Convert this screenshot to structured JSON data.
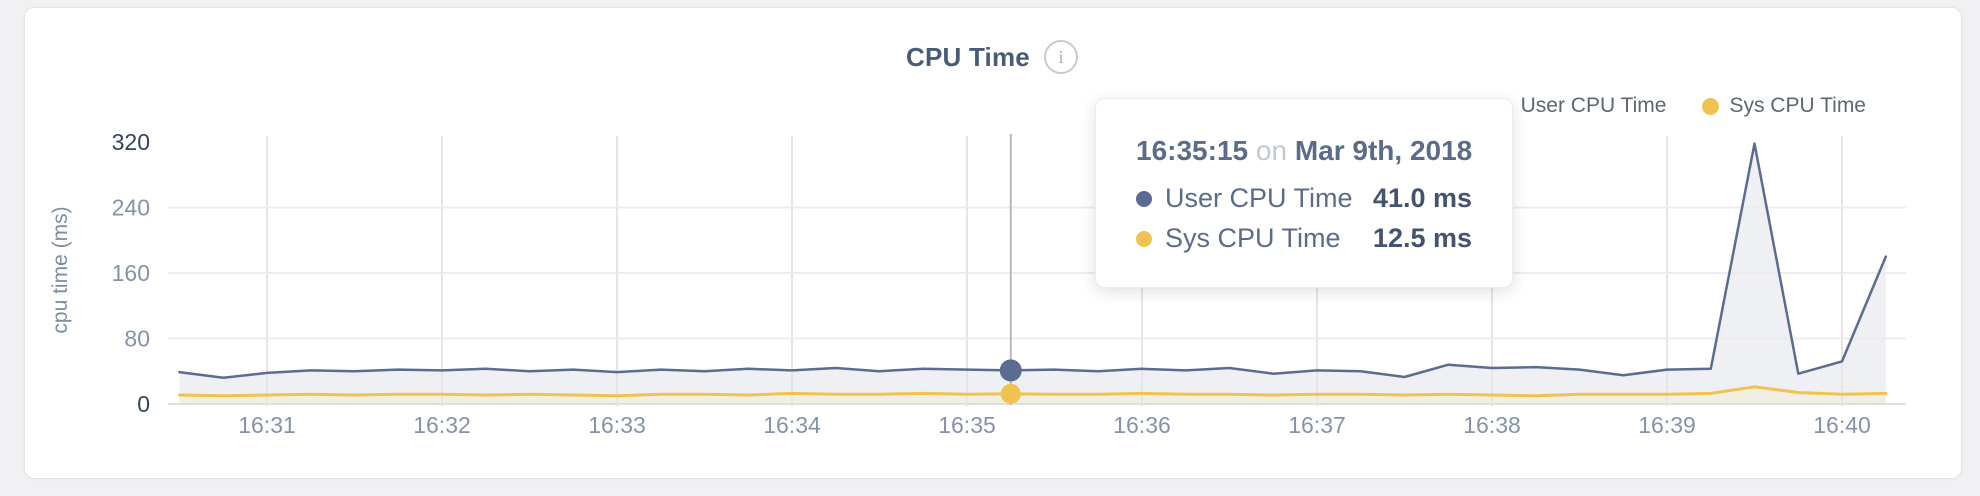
{
  "header": {
    "title": "CPU Time",
    "info_icon": "i"
  },
  "legend": {
    "items": [
      {
        "label": "User CPU Time",
        "color": "#5a6c8f"
      },
      {
        "label": "Sys CPU Time",
        "color": "#f0c24f"
      }
    ]
  },
  "tooltip": {
    "time": "16:35:15",
    "conjunction": "on",
    "date": "Mar 9th, 2018",
    "rows": [
      {
        "label": "User CPU Time",
        "value": "41.0 ms",
        "color": "#5a6c8f"
      },
      {
        "label": "Sys CPU Time",
        "value": "12.5 ms",
        "color": "#f0c24f"
      }
    ]
  },
  "chart_data": {
    "type": "area",
    "title": "CPU Time",
    "xlabel": "",
    "ylabel": "cpu time (ms)",
    "ylim": [
      0,
      320
    ],
    "grid": true,
    "legend_position": "top-right",
    "y_ticks": [
      {
        "label": "320",
        "value": 320,
        "strong": true,
        "gridline": false
      },
      {
        "label": "240",
        "value": 240,
        "strong": false,
        "gridline": true
      },
      {
        "label": "160",
        "value": 160,
        "strong": false,
        "gridline": true
      },
      {
        "label": "80",
        "value": 80,
        "strong": false,
        "gridline": true
      },
      {
        "label": "0",
        "value": 0,
        "strong": true,
        "gridline": false
      }
    ],
    "x_tick_labels": [
      "16:31",
      "16:32",
      "16:33",
      "16:34",
      "16:35",
      "16:36",
      "16:37",
      "16:38",
      "16:39",
      "16:40"
    ],
    "x": [
      "16:30:30",
      "16:30:45",
      "16:31:00",
      "16:31:15",
      "16:31:30",
      "16:31:45",
      "16:32:00",
      "16:32:15",
      "16:32:30",
      "16:32:45",
      "16:33:00",
      "16:33:15",
      "16:33:30",
      "16:33:45",
      "16:34:00",
      "16:34:15",
      "16:34:30",
      "16:34:45",
      "16:35:00",
      "16:35:15",
      "16:35:30",
      "16:35:45",
      "16:36:00",
      "16:36:15",
      "16:36:30",
      "16:36:45",
      "16:37:00",
      "16:37:15",
      "16:37:30",
      "16:37:45",
      "16:38:00",
      "16:38:15",
      "16:38:30",
      "16:38:45",
      "16:39:00",
      "16:39:15",
      "16:39:30",
      "16:39:45",
      "16:40:00",
      "16:40:15"
    ],
    "series": [
      {
        "name": "User CPU Time",
        "color": "#5a6c8f",
        "fill": "#eef0f4",
        "values": [
          39,
          32,
          38,
          41,
          40,
          42,
          41,
          43,
          40,
          42,
          39,
          42,
          40,
          43,
          41,
          44,
          40,
          43,
          42,
          41,
          42,
          40,
          43,
          41,
          44,
          37,
          41,
          40,
          33,
          48,
          44,
          45,
          42,
          35,
          42,
          43,
          318,
          37,
          52,
          180
        ]
      },
      {
        "name": "Sys CPU Time",
        "color": "#f0c24f",
        "fill": "#f1eee3",
        "values": [
          11,
          10,
          11,
          12,
          11,
          12,
          12,
          11,
          12,
          11,
          10,
          12,
          12,
          11,
          13,
          12,
          12,
          13,
          12,
          12.5,
          12,
          12,
          13,
          12,
          12,
          11,
          12,
          12,
          11,
          12,
          11,
          10,
          12,
          12,
          12,
          13,
          21,
          14,
          12,
          13
        ]
      }
    ],
    "hover": {
      "x": "16:35:15",
      "index": 19,
      "user_value_ms": 41.0,
      "sys_value_ms": 12.5
    }
  },
  "colors": {
    "hover_line": "#b7b9bd",
    "gridline_vertical": "#e5e5e8",
    "gridline_horizontal": "#ececee",
    "baseline": "#dfdfe2",
    "tick_strong": "#35425f",
    "tick_light": "#8493a9",
    "y_axis_title": "#7e8da4"
  }
}
